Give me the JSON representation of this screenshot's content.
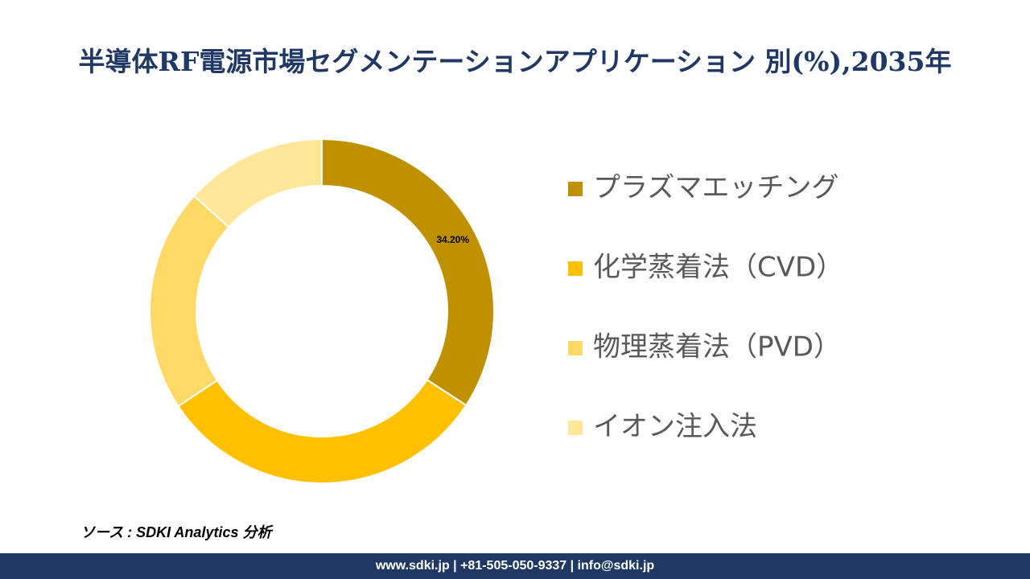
{
  "chart_data": {
    "type": "donut",
    "title": "半導体RF電源市場セグメンテーションアプリケーション 別(%),2035年",
    "categories": [
      "プラズマエッチング",
      "化学蒸着法（CVD）",
      "物理蒸着法（PVD）",
      "イオン注入法"
    ],
    "values": [
      34.2,
      31.5,
      21,
      13.3
    ],
    "value_labels": [
      "34.20%",
      null,
      null,
      null
    ],
    "colors": [
      "#bf9000",
      "#ffc000",
      "#ffd966",
      "#ffe699"
    ],
    "legend": "right"
  },
  "source": "ソース : SDKI Analytics 分析",
  "footer": "www.sdki.jp | +81-505-050-9337 | info@sdki.jp"
}
